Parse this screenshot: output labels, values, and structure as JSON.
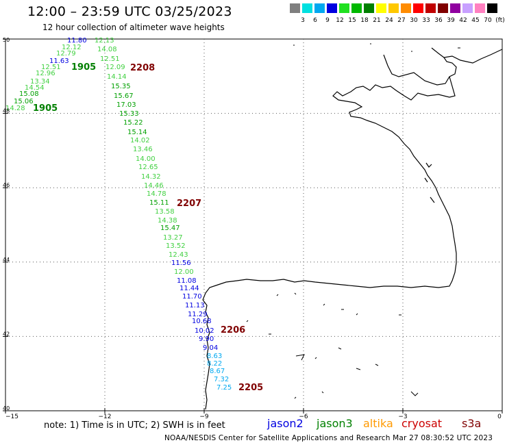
{
  "title": "12:00 – 23:59 UTC 03/25/2023",
  "subtitle": "12 hour collection of altimeter wave heights",
  "color_scale": {
    "swatches": [
      "#7f7f7f",
      "#00e0e0",
      "#00a8f0",
      "#0000e0",
      "#20e020",
      "#00b800",
      "#008000",
      "#ffff00",
      "#ffc800",
      "#ff8c00",
      "#ff0000",
      "#c00000",
      "#800000",
      "#9000a0",
      "#c8a0ff",
      "#ff80c0",
      "#000000"
    ],
    "labels": [
      "3",
      "6",
      "9",
      "12",
      "15",
      "18",
      "21",
      "24",
      "27",
      "30",
      "33",
      "36",
      "39",
      "42",
      "45",
      "70",
      "(ft)"
    ]
  },
  "axes": {
    "lat_labels": [
      "50",
      "48",
      "46",
      "44",
      "42",
      "40"
    ],
    "lon_labels": [
      "−15",
      "−12",
      "−9",
      "−6",
      "−3",
      "0"
    ]
  },
  "readings": [
    {
      "text": "11.80",
      "color": "#0000e0"
    },
    {
      "text": "12.13",
      "color": "#40d040"
    },
    {
      "text": "12.12",
      "color": "#40d040"
    },
    {
      "text": "14.08",
      "color": "#40d040"
    },
    {
      "text": "12.79",
      "color": "#40d040"
    },
    {
      "text": "12.51",
      "color": "#40d040"
    },
    {
      "text": "11.63",
      "color": "#0000e0"
    },
    {
      "text": "12.51",
      "color": "#40d040"
    },
    {
      "text": "12.09",
      "color": "#40d040"
    },
    {
      "text": "12.96",
      "color": "#40d040"
    },
    {
      "text": "14.14",
      "color": "#40d040"
    },
    {
      "text": "13.34",
      "color": "#40d040"
    },
    {
      "text": "14.54",
      "color": "#40d040"
    },
    {
      "text": "15.35",
      "color": "#00a000"
    },
    {
      "text": "15.08",
      "color": "#00a000"
    },
    {
      "text": "15.67",
      "color": "#00a000"
    },
    {
      "text": "15.06",
      "color": "#00a000"
    },
    {
      "text": "14.28",
      "color": "#40d040"
    },
    {
      "text": "17.03",
      "color": "#00a000"
    },
    {
      "text": "15.33",
      "color": "#00a000"
    },
    {
      "text": "15.22",
      "color": "#00a000"
    },
    {
      "text": "15.14",
      "color": "#00a000"
    },
    {
      "text": "14.02",
      "color": "#40d040"
    },
    {
      "text": "13.46",
      "color": "#40d040"
    },
    {
      "text": "14.00",
      "color": "#40d040"
    },
    {
      "text": "12.65",
      "color": "#40d040"
    },
    {
      "text": "14.32",
      "color": "#40d040"
    },
    {
      "text": "14.46",
      "color": "#40d040"
    },
    {
      "text": "14.78",
      "color": "#40d040"
    },
    {
      "text": "15.11",
      "color": "#00a000"
    },
    {
      "text": "13.58",
      "color": "#40d040"
    },
    {
      "text": "14.38",
      "color": "#40d040"
    },
    {
      "text": "15.47",
      "color": "#00a000"
    },
    {
      "text": "13.27",
      "color": "#40d040"
    },
    {
      "text": "13.52",
      "color": "#40d040"
    },
    {
      "text": "12.43",
      "color": "#40d040"
    },
    {
      "text": "11.56",
      "color": "#0000e0"
    },
    {
      "text": "12.00",
      "color": "#40d040"
    },
    {
      "text": "11.08",
      "color": "#0000e0"
    },
    {
      "text": "11.44",
      "color": "#0000e0"
    },
    {
      "text": "11.70",
      "color": "#0000e0"
    },
    {
      "text": "11.13",
      "color": "#0000e0"
    },
    {
      "text": "11.29",
      "color": "#0000e0"
    },
    {
      "text": "10.68",
      "color": "#0000e0"
    },
    {
      "text": "10.02",
      "color": "#0000e0"
    },
    {
      "text": "9.90",
      "color": "#0000e0"
    },
    {
      "text": "9.04",
      "color": "#0000e0"
    },
    {
      "text": "8.63",
      "color": "#00a8f0"
    },
    {
      "text": "8.22",
      "color": "#00a8f0"
    },
    {
      "text": "8.67",
      "color": "#00a8f0"
    },
    {
      "text": "7.32",
      "color": "#00a8f0"
    },
    {
      "text": "7.25",
      "color": "#00a8f0"
    }
  ],
  "time_labels": [
    {
      "text": "1905",
      "color": "#008000"
    },
    {
      "text": "2208",
      "color": "#800000"
    },
    {
      "text": "1905",
      "color": "#008000"
    },
    {
      "text": "2207",
      "color": "#800000"
    },
    {
      "text": "2206",
      "color": "#800000"
    },
    {
      "text": "2205",
      "color": "#800000"
    }
  ],
  "note": "note:  1) Time is in UTC; 2) SWH is in feet",
  "legend": [
    {
      "name": "jason2",
      "color": "#0000e0"
    },
    {
      "name": "jason3",
      "color": "#008000"
    },
    {
      "name": "altika",
      "color": "#ff9900"
    },
    {
      "name": "cryosat",
      "color": "#cc0000"
    },
    {
      "name": "s3a",
      "color": "#800000"
    }
  ],
  "footer": "NOAA/NESDIS Center for Satellite Applications and Research    Mar 27 08:30:52 UTC 2023"
}
